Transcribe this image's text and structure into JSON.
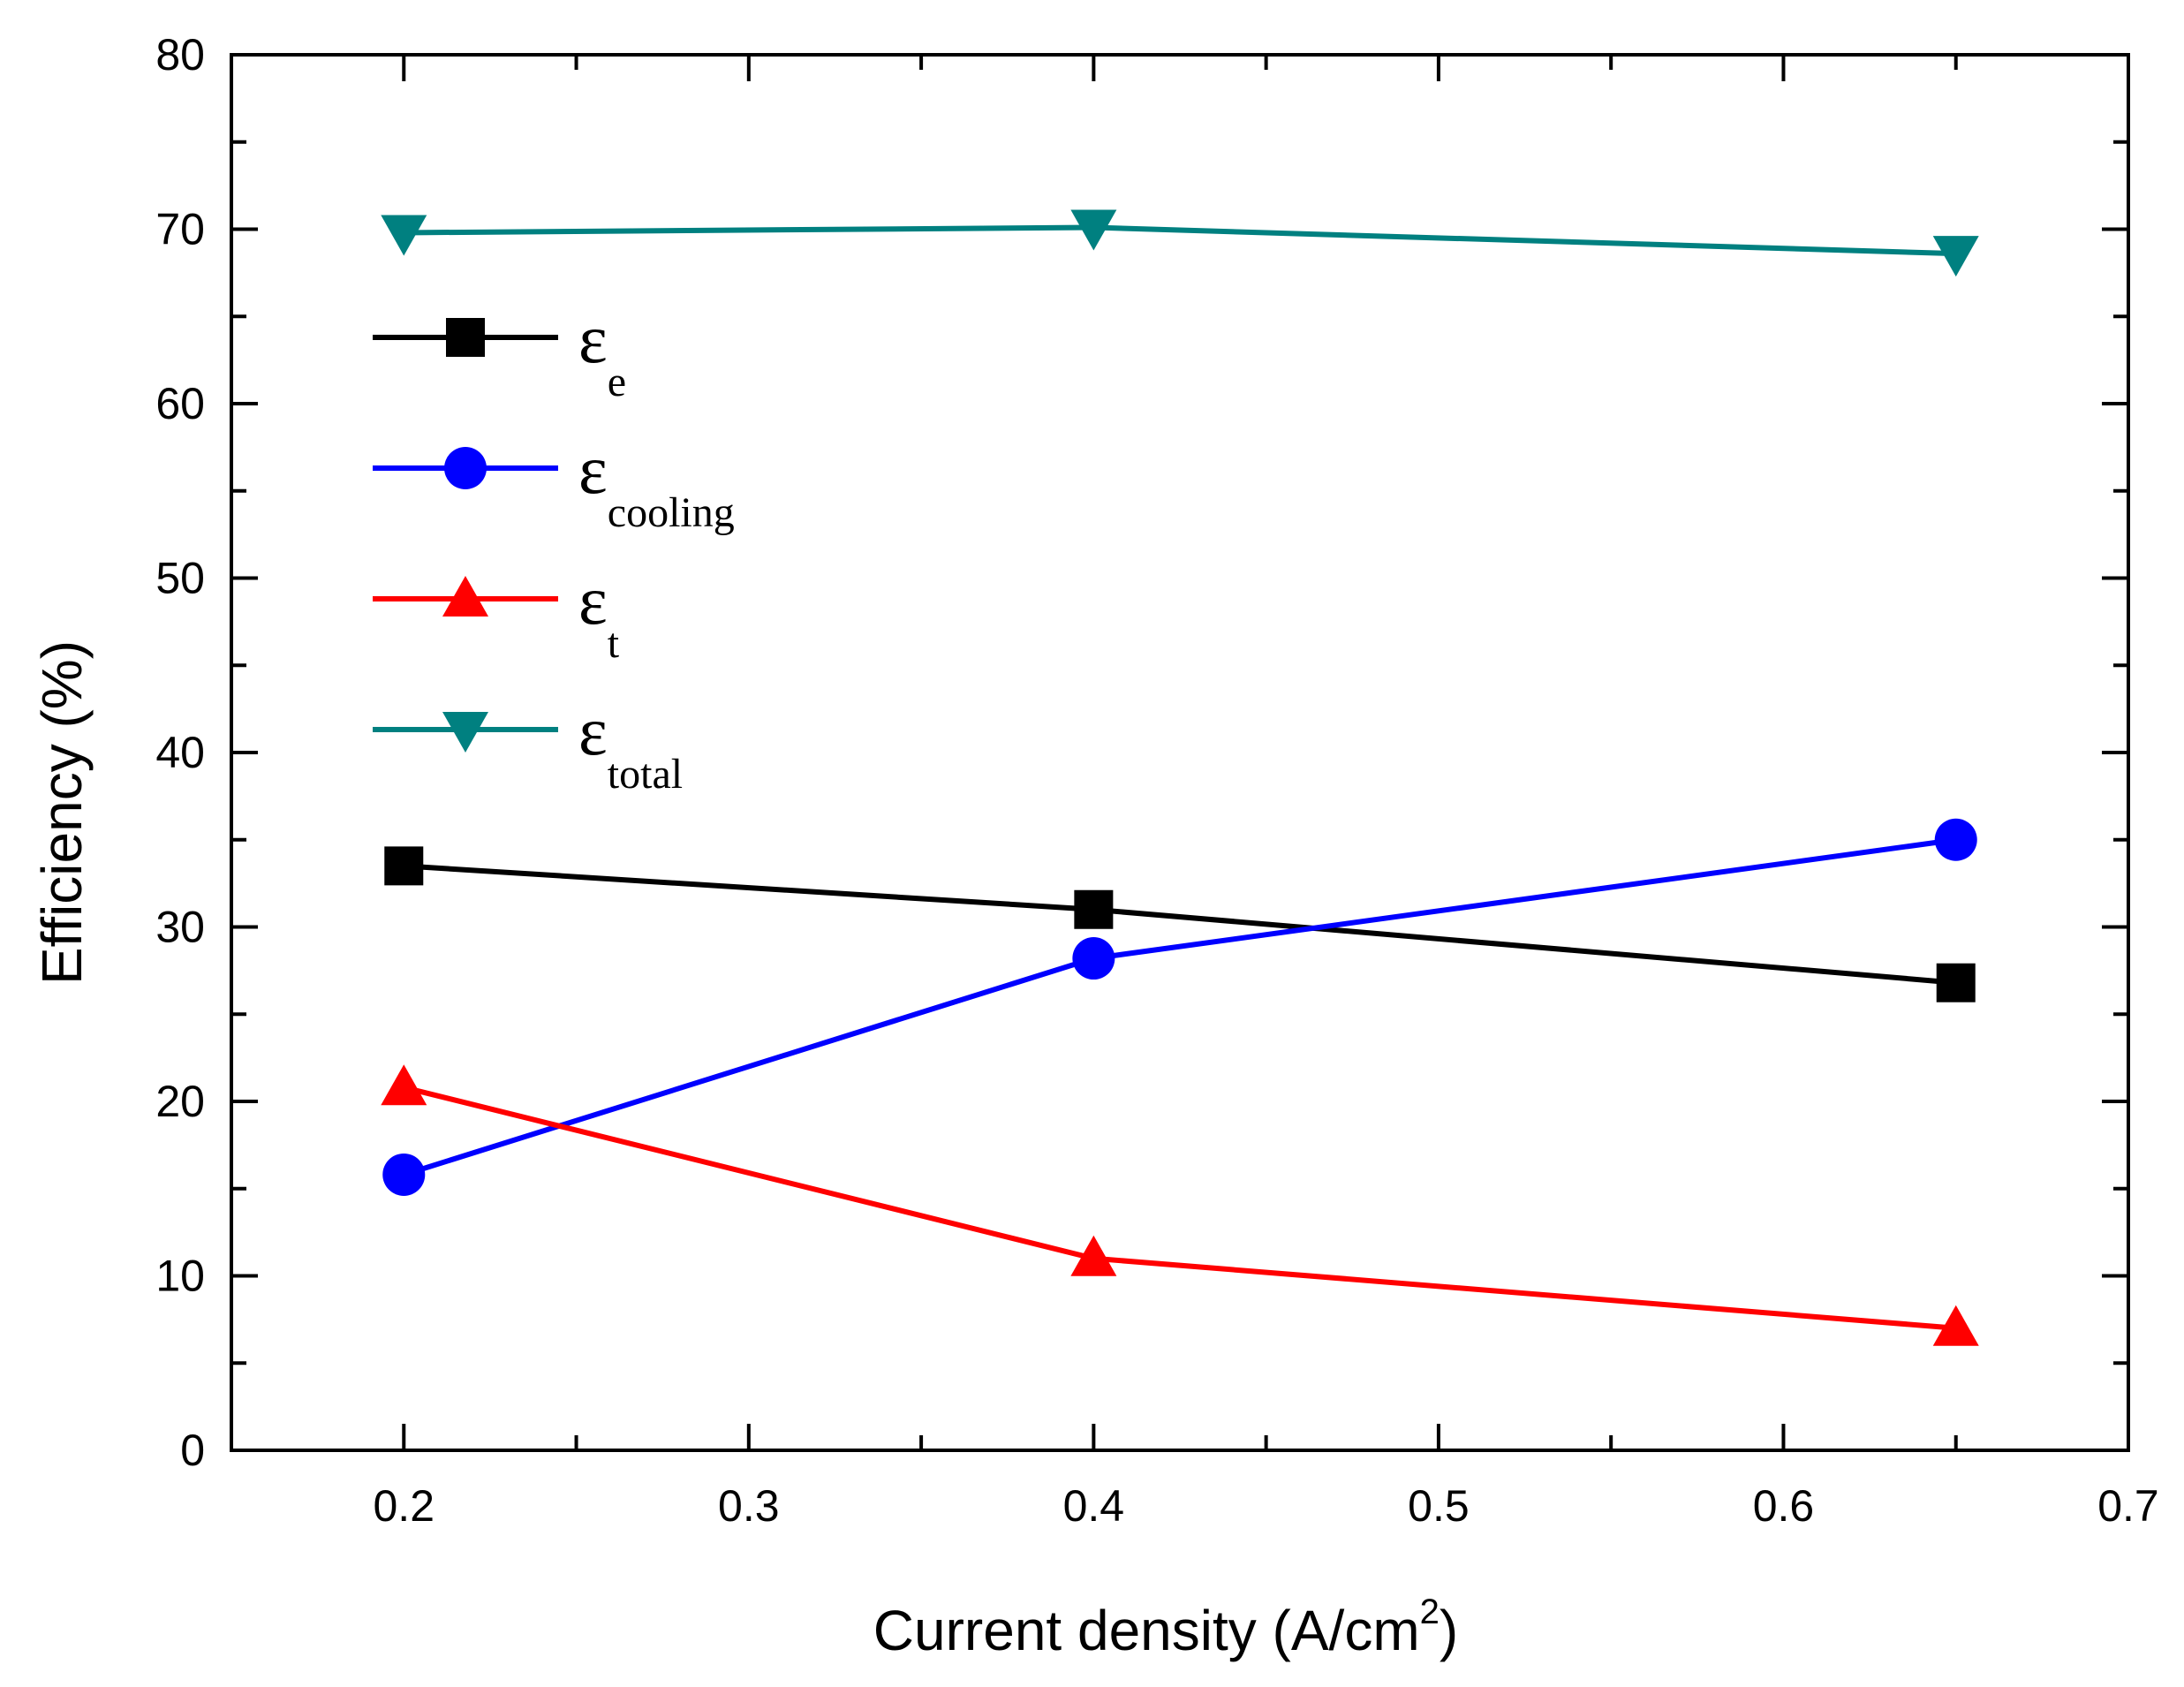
{
  "chart_data": {
    "type": "line",
    "title": "",
    "xlabel": "Current density (A/cm",
    "xlabel_sup": "2",
    "xlabel_close": ")",
    "ylabel": "Efficiency (%)",
    "xlim": [
      0.15,
      0.7
    ],
    "ylim": [
      0,
      80
    ],
    "x_ticks": [
      0.2,
      0.3,
      0.4,
      0.5,
      0.6,
      0.7
    ],
    "x_tick_labels": [
      "0.2",
      "0.3",
      "0.4",
      "0.5",
      "0.6",
      "0.7"
    ],
    "y_ticks": [
      0,
      10,
      20,
      30,
      40,
      50,
      60,
      70,
      80
    ],
    "y_tick_labels": [
      "0",
      "10",
      "20",
      "30",
      "40",
      "50",
      "60",
      "70",
      "80"
    ],
    "x": [
      0.2,
      0.4,
      0.65
    ],
    "grid": false,
    "legend_position": "upper-left",
    "series": [
      {
        "name": "ε",
        "sub": "e",
        "marker": "square",
        "color": "#000000",
        "values": [
          33.5,
          31.0,
          26.8
        ]
      },
      {
        "name": "ε",
        "sub": "cooling",
        "marker": "circle",
        "color": "#0000ff",
        "values": [
          15.8,
          28.2,
          35.0
        ]
      },
      {
        "name": "ε",
        "sub": "t",
        "marker": "triangle-up",
        "color": "#ff0000",
        "values": [
          20.8,
          11.0,
          7.0
        ]
      },
      {
        "name": "ε",
        "sub": "total",
        "marker": "triangle-down",
        "color": "#008080",
        "values": [
          69.8,
          70.1,
          68.6
        ]
      }
    ]
  }
}
